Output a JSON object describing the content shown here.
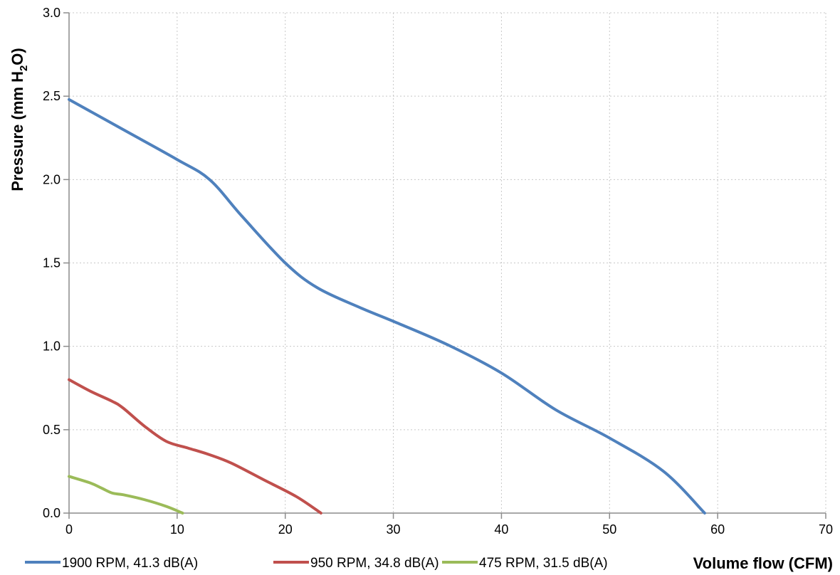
{
  "chart_data": {
    "type": "line",
    "xlabel": "Volume flow (CFM)",
    "ylabel": "Pressure (mm H2O)",
    "ylabel_parts": [
      "Pressure (mm H",
      "2",
      "O)"
    ],
    "xlim": [
      0,
      70
    ],
    "ylim": [
      0,
      3.0
    ],
    "x_ticks": [
      0,
      10,
      20,
      30,
      40,
      50,
      60,
      70
    ],
    "x_tick_labels": [
      "0",
      "10",
      "20",
      "30",
      "40",
      "50",
      "60",
      "70"
    ],
    "y_ticks": [
      0,
      0.5,
      1.0,
      1.5,
      2.0,
      2.5,
      3.0
    ],
    "y_tick_labels": [
      "0.0",
      "0.5",
      "1.0",
      "1.5",
      "2.0",
      "2.5",
      "3.0"
    ],
    "grid": true,
    "legend_position": "bottom",
    "series": [
      {
        "name": "1900 RPM, 41.3 dB(A)",
        "color": "#4f81bd",
        "x": [
          0,
          5,
          10,
          13,
          16,
          20,
          23,
          27,
          30,
          35,
          40,
          45,
          50,
          55,
          58.8
        ],
        "y": [
          2.48,
          2.3,
          2.12,
          2.0,
          1.78,
          1.5,
          1.35,
          1.23,
          1.15,
          1.01,
          0.84,
          0.62,
          0.45,
          0.25,
          0.0
        ]
      },
      {
        "name": "950 RPM, 34.8 dB(A)",
        "color": "#c0504d",
        "x": [
          0,
          2,
          4,
          5,
          7,
          9,
          11,
          13,
          15,
          18,
          21,
          23.3
        ],
        "y": [
          0.8,
          0.73,
          0.67,
          0.63,
          0.52,
          0.43,
          0.39,
          0.35,
          0.3,
          0.2,
          0.1,
          0.0
        ]
      },
      {
        "name": "475 RPM, 31.5 dB(A)",
        "color": "#9bbb59",
        "x": [
          0,
          2,
          3,
          4,
          5,
          7,
          9,
          10.5
        ],
        "y": [
          0.22,
          0.18,
          0.15,
          0.12,
          0.11,
          0.08,
          0.04,
          0.0
        ]
      }
    ]
  }
}
